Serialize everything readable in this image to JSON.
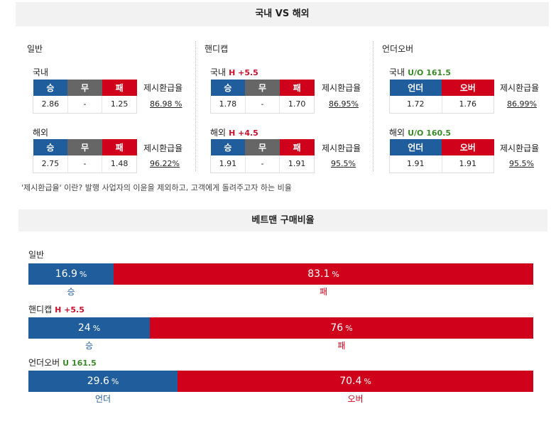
{
  "header1": "국내 VS 해외",
  "header2": "베트맨 구매비율",
  "columns": [
    {
      "title": "일반",
      "blocks": [
        {
          "label": "국내",
          "accent": "",
          "headers": [
            "승",
            "무",
            "패"
          ],
          "values": [
            "2.86",
            "-",
            "1.25"
          ],
          "refund_label": "제시환급율",
          "refund": "86.98 %"
        },
        {
          "label": "해외",
          "accent": "",
          "headers": [
            "승",
            "무",
            "패"
          ],
          "values": [
            "2.75",
            "-",
            "1.48"
          ],
          "refund_label": "제시환급율",
          "refund": "96.22%"
        }
      ]
    },
    {
      "title": "핸디캡",
      "blocks": [
        {
          "label": "국내",
          "accent": "H +5.5",
          "headers": [
            "승",
            "무",
            "패"
          ],
          "values": [
            "1.78",
            "-",
            "1.70"
          ],
          "refund_label": "제시환급율",
          "refund": "86.95%"
        },
        {
          "label": "해외",
          "accent": "H +4.5",
          "headers": [
            "승",
            "무",
            "패"
          ],
          "values": [
            "1.91",
            "-",
            "1.91"
          ],
          "refund_label": "제시환급율",
          "refund": "95.5%"
        }
      ]
    },
    {
      "title": "언더오버",
      "blocks": [
        {
          "label": "국내",
          "accent": "U/O 161.5",
          "headers": [
            "언더",
            "오버"
          ],
          "values": [
            "1.72",
            "1.76"
          ],
          "refund_label": "제시환급율",
          "refund": "86.99%"
        },
        {
          "label": "해외",
          "accent": "U/O 160.5",
          "headers": [
            "언더",
            "오버"
          ],
          "values": [
            "1.91",
            "1.91"
          ],
          "refund_label": "제시환급율",
          "refund": "95.5%"
        }
      ]
    }
  ],
  "note": "'제시환급율' 이란? 발행 사업자의 이윤을 제외하고, 고객에게 돌려주고자 하는 비율",
  "bars": [
    {
      "title": "일반",
      "accent": "",
      "left_value": 16.9,
      "right_value": 83.1,
      "left_text": "16.9",
      "right_text": "83.1",
      "pct": "%",
      "left_label": "승",
      "right_label": "패"
    },
    {
      "title": "핸디캡",
      "accent": "H +5.5",
      "left_value": 24,
      "right_value": 76,
      "left_text": "24",
      "right_text": "76",
      "pct": "%",
      "left_label": "승",
      "right_label": "패"
    },
    {
      "title": "언더오버",
      "accent": "U 161.5",
      "left_value": 29.6,
      "right_value": 70.4,
      "left_text": "29.6",
      "right_text": "70.4",
      "pct": "%",
      "left_label": "언더",
      "right_label": "오버"
    }
  ],
  "colors": {
    "blue": "#1f5d9c",
    "gray": "#666666",
    "red": "#d0021b",
    "accent_red": "#c8102e",
    "accent_green": "#3a8a2a"
  }
}
